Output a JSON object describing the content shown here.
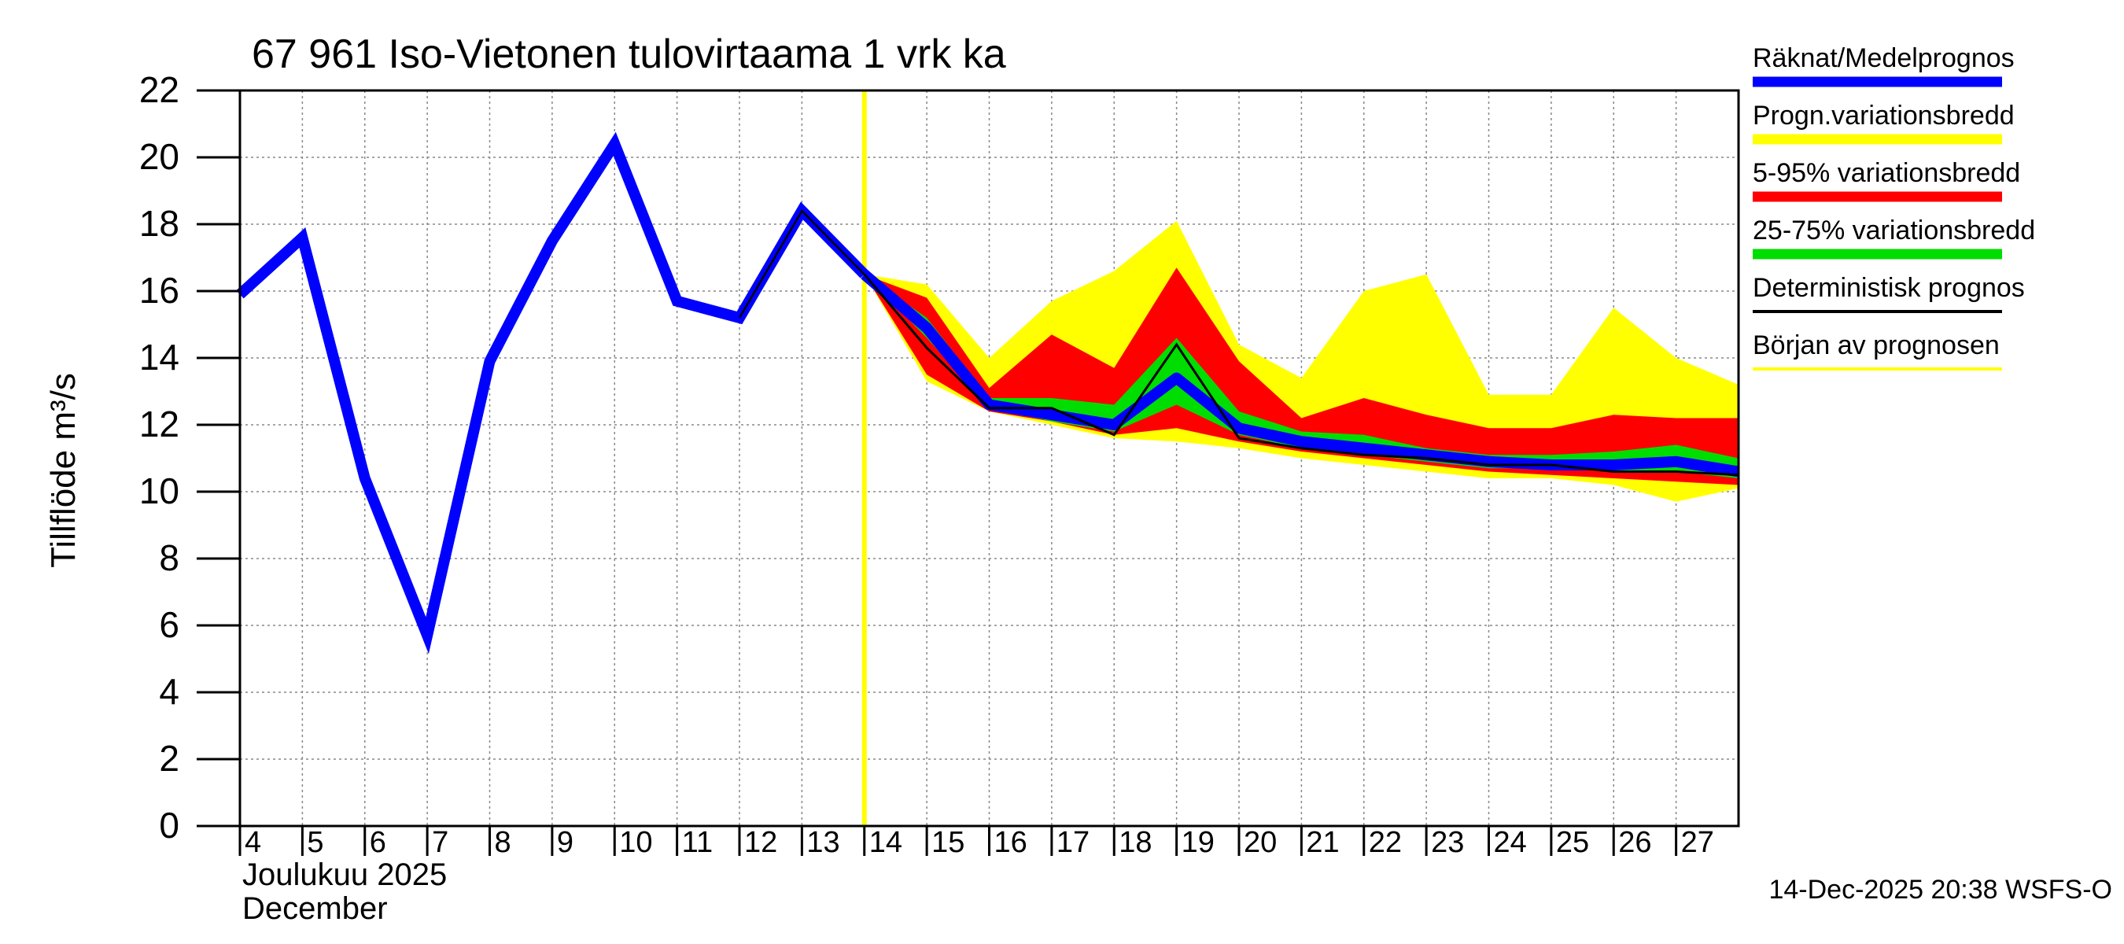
{
  "chart_data": {
    "type": "area",
    "title": "67 961 Iso-Vietonen tulovirtaama 1 vrk ka",
    "ylabel": "Tillflöde m³/s",
    "xlabel_line1": "Joulukuu  2025",
    "xlabel_line2": "December",
    "footer": "14-Dec-2025 20:38 WSFS-O",
    "ylim": [
      0,
      22
    ],
    "xlim": [
      4,
      28
    ],
    "yticks": [
      0,
      2,
      4,
      6,
      8,
      10,
      12,
      14,
      16,
      18,
      20,
      22
    ],
    "xticks": [
      4,
      5,
      6,
      7,
      8,
      9,
      10,
      11,
      12,
      13,
      14,
      15,
      16,
      17,
      18,
      19,
      20,
      21,
      22,
      23,
      24,
      25,
      26,
      27
    ],
    "grid": true,
    "forecast_start": 14,
    "legend_placement": "right",
    "legend": [
      {
        "label": "Räknat/Medelprognos",
        "color": "#0000ff"
      },
      {
        "label": "Progn.variationsbredd",
        "color": "#ffff00"
      },
      {
        "label": "5-95% variationsbredd",
        "color": "#ff0000"
      },
      {
        "label": "25-75% variationsbredd",
        "color": "#00dd00"
      },
      {
        "label": "Deterministisk prognos",
        "color": "#000000"
      },
      {
        "label": "Början av prognosen",
        "color": "#ffff00"
      }
    ],
    "observed": {
      "x": [
        4,
        5,
        6,
        7,
        8,
        9,
        10,
        11,
        12,
        13,
        14
      ],
      "y": [
        15.9,
        17.6,
        10.4,
        5.7,
        13.9,
        17.5,
        20.4,
        15.7,
        15.2,
        18.4,
        16.5
      ]
    },
    "forecast_x": [
      14,
      15,
      16,
      17,
      18,
      19,
      20,
      21,
      22,
      23,
      24,
      25,
      26,
      27,
      28
    ],
    "bands": {
      "yellow_upper": [
        16.5,
        16.2,
        14.0,
        15.7,
        16.6,
        18.1,
        14.4,
        13.4,
        16.0,
        16.5,
        12.9,
        12.9,
        15.5,
        14.0,
        13.2
      ],
      "yellow_lower": [
        16.5,
        13.3,
        12.4,
        12.0,
        11.6,
        11.5,
        11.3,
        11.0,
        10.8,
        10.6,
        10.4,
        10.4,
        10.2,
        9.7,
        10.1
      ],
      "red_upper": [
        16.5,
        15.8,
        13.1,
        14.7,
        13.7,
        16.7,
        13.9,
        12.2,
        12.8,
        12.3,
        11.9,
        11.9,
        12.3,
        12.2,
        12.2
      ],
      "red_lower": [
        16.5,
        13.5,
        12.4,
        12.1,
        11.7,
        11.9,
        11.5,
        11.2,
        11.0,
        10.8,
        10.6,
        10.5,
        10.4,
        10.3,
        10.2
      ],
      "green_upper": [
        16.5,
        15.2,
        12.8,
        12.8,
        12.6,
        14.6,
        12.4,
        11.8,
        11.7,
        11.3,
        11.1,
        11.1,
        11.2,
        11.4,
        11.0
      ],
      "green_lower": [
        16.5,
        14.6,
        12.5,
        12.1,
        11.8,
        12.6,
        11.7,
        11.3,
        11.1,
        10.9,
        10.7,
        10.7,
        10.6,
        10.6,
        10.4
      ]
    },
    "mean_forecast": [
      16.5,
      14.9,
      12.6,
      12.3,
      12.0,
      13.4,
      11.9,
      11.5,
      11.3,
      11.1,
      10.9,
      10.8,
      10.8,
      10.9,
      10.6
    ],
    "deterministic": [
      16.5,
      14.3,
      12.5,
      12.5,
      11.7,
      14.4,
      11.6,
      11.3,
      11.1,
      11.0,
      10.8,
      10.8,
      10.6,
      10.6,
      10.5
    ]
  }
}
